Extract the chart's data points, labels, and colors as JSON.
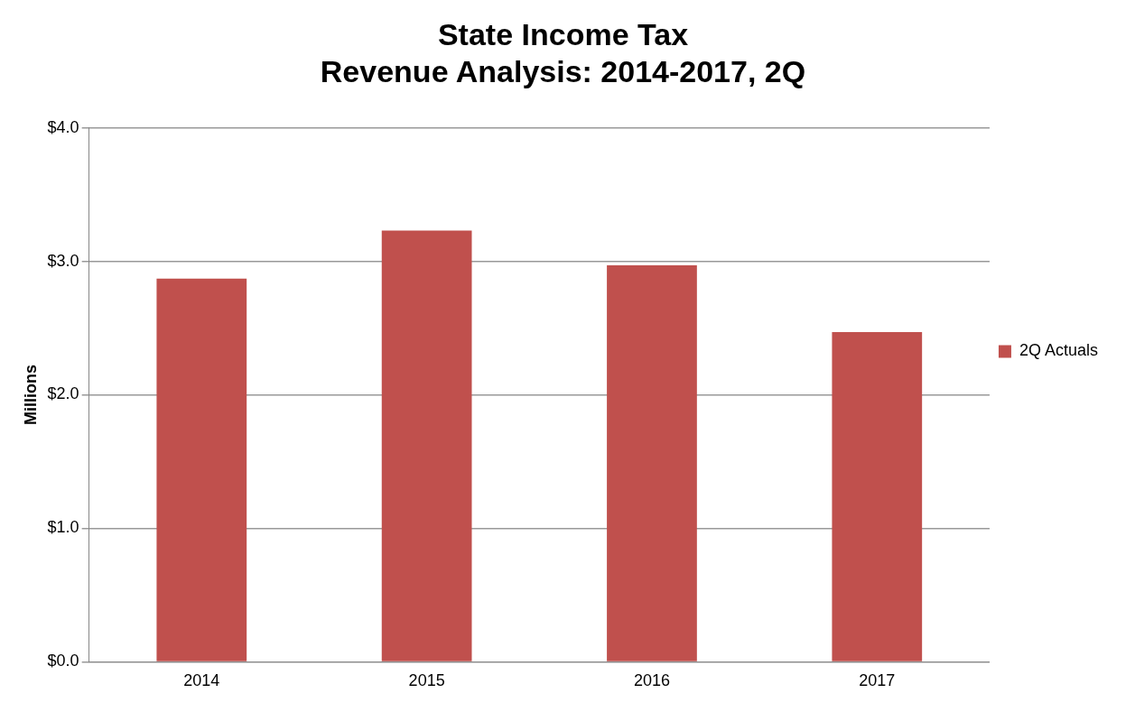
{
  "chart_data": {
    "type": "bar",
    "title": "State Income Tax\nRevenue Analysis: 2014-2017, 2Q",
    "ylabel": "Millions",
    "categories": [
      "2014",
      "2015",
      "2016",
      "2017"
    ],
    "series": [
      {
        "name": "2Q Actuals",
        "color": "#c0504d",
        "values": [
          2.87,
          3.23,
          2.97,
          2.47
        ]
      }
    ],
    "ylim": [
      0,
      4
    ],
    "yticks": [
      {
        "value": 0,
        "label": "$0.0"
      },
      {
        "value": 1,
        "label": "$1.0"
      },
      {
        "value": 2,
        "label": "$2.0"
      },
      {
        "value": 3,
        "label": "$3.0"
      },
      {
        "value": 4,
        "label": "$4.0"
      }
    ],
    "grid": "y",
    "legend": "right"
  }
}
